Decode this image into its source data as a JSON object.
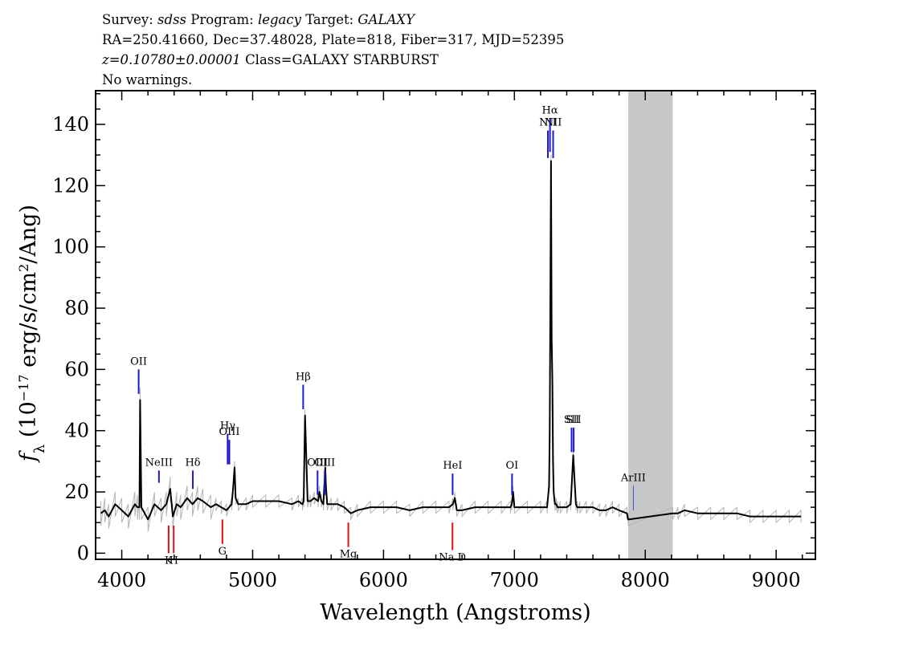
{
  "header": {
    "line1": {
      "survey_label": "Survey:",
      "survey": "sdss",
      "program_label": "Program:",
      "program": "legacy",
      "target_label": "Target:",
      "target": "GALAXY"
    },
    "line2": "RA=250.41660, Dec=37.48028, Plate=818, Fiber=317, MJD=52395",
    "line3": {
      "redshift": "z=0.10780±0.00001",
      "class": "Class=GALAXY STARBURST"
    },
    "line4": "No warnings."
  },
  "colors": {
    "spectrum": "#000000",
    "noise": "#b4b4b4",
    "mask": "#c8c8c8",
    "emission": "#1a1acc",
    "absorption": "#e01010",
    "faint_label": "#444444"
  },
  "chart_data": {
    "type": "line",
    "xlabel": "Wavelength (Angstroms)",
    "ylabel": "f_λ (10^-17 erg/s/cm^2/Ang)",
    "xlim": [
      3800,
      9300
    ],
    "ylim": [
      -2,
      151
    ],
    "xticks": [
      4000,
      5000,
      6000,
      7000,
      8000,
      9000
    ],
    "yticks": [
      0,
      20,
      40,
      60,
      80,
      100,
      120,
      140
    ],
    "grid": false,
    "masked_region": [
      7870,
      8210
    ],
    "series": [
      {
        "values_note": "",
        "x": [
          3840,
          3870,
          3900,
          3950,
          4000,
          4050,
          4100,
          4120,
          4135,
          4140,
          4150,
          4200,
          4250,
          4300,
          4340,
          4370,
          4390,
          4420,
          4450,
          4500,
          4540,
          4580,
          4620,
          4680,
          4720,
          4760,
          4800,
          4840,
          4850,
          4862,
          4870,
          4890,
          4950,
          5000,
          5100,
          5200,
          5300,
          5350,
          5380,
          5390,
          5400,
          5420,
          5440,
          5470,
          5500,
          5510,
          5525,
          5540,
          5555,
          5560,
          5570,
          5600,
          5650,
          5700,
          5750,
          5800,
          5900,
          6000,
          6100,
          6200,
          6300,
          6400,
          6500,
          6530,
          6545,
          6560,
          6600,
          6700,
          6800,
          6900,
          6970,
          6980,
          6990,
          7000,
          7100,
          7200,
          7250,
          7265,
          7270,
          7280,
          7285,
          7290,
          7295,
          7300,
          7310,
          7320,
          7330,
          7350,
          7400,
          7430,
          7440,
          7450,
          7460,
          7470,
          7480,
          7500,
          7550,
          7600,
          7650,
          7700,
          7750,
          7800,
          7860,
          7870,
          8210,
          8250,
          8300,
          8400,
          8500,
          8600,
          8700,
          8800,
          8900,
          9000,
          9100,
          9190
        ],
        "y": [
          13,
          14,
          12,
          16,
          14,
          12,
          16,
          15,
          15,
          50,
          15,
          11,
          16,
          14,
          16,
          21,
          12,
          16,
          15,
          18,
          16,
          18,
          17,
          15,
          16,
          15,
          14,
          16,
          21,
          28,
          18,
          16,
          16,
          17,
          17,
          17,
          16,
          17,
          16,
          17,
          45,
          17,
          17,
          18,
          17,
          20,
          17,
          16,
          28,
          22,
          16,
          16,
          16,
          15,
          13,
          14,
          15,
          15,
          15,
          14,
          15,
          15,
          15,
          16,
          18,
          14,
          14,
          15,
          15,
          15,
          15,
          16,
          20,
          15,
          15,
          15,
          15,
          22,
          40,
          128,
          70,
          56,
          30,
          20,
          16,
          16,
          15,
          15,
          15,
          16,
          24,
          32,
          24,
          16,
          15,
          15,
          15,
          15,
          14,
          14,
          15,
          14,
          13,
          11,
          13,
          13,
          14,
          13,
          13,
          13,
          13,
          12,
          12,
          12,
          12,
          12
        ]
      }
    ],
    "emission_lines": [
      {
        "label": "OII",
        "x": 4129,
        "top": 60,
        "bottom": 52
      },
      {
        "label": "NeIII",
        "x": 4284,
        "top": 27,
        "bottom": 23
      },
      {
        "label": "Hδ",
        "x": 4543,
        "top": 27,
        "bottom": 21
      },
      {
        "label": "Hγ",
        "x": 4809,
        "top": 39,
        "bottom": 29
      },
      {
        "label": "OIII",
        "x": 4822,
        "top": 37,
        "bottom": 29
      },
      {
        "label": "Hβ",
        "x": 5386,
        "top": 55,
        "bottom": 47
      },
      {
        "label": "OIII",
        "x": 5496,
        "top": 27,
        "bottom": 19
      },
      {
        "label": "OIII",
        "x": 5551,
        "top": 27,
        "bottom": 19
      },
      {
        "label": "HeI",
        "x": 6528,
        "top": 26,
        "bottom": 19
      },
      {
        "label": "OI",
        "x": 6982,
        "top": 26,
        "bottom": 19
      },
      {
        "label": "NII",
        "x": 7256,
        "top": 138,
        "bottom": 129
      },
      {
        "label": "Hα",
        "x": 7272,
        "top": 142,
        "bottom": 131
      },
      {
        "label": "NII",
        "x": 7296,
        "top": 138,
        "bottom": 129
      },
      {
        "label": "SII",
        "x": 7437,
        "top": 41,
        "bottom": 33
      },
      {
        "label": "SII",
        "x": 7453,
        "top": 41,
        "bottom": 33
      },
      {
        "label": "ArIII",
        "x": 7909,
        "top": 22,
        "bottom": 14
      }
    ],
    "absorption_lines": [
      {
        "label": "K",
        "x": 4358,
        "top": 9,
        "bottom": 0
      },
      {
        "label": "H",
        "x": 4397,
        "top": 9,
        "bottom": 0
      },
      {
        "label": "G",
        "x": 4769,
        "top": 11,
        "bottom": 3
      },
      {
        "label": "Mg",
        "x": 5731,
        "top": 10,
        "bottom": 2
      },
      {
        "label": "Na D",
        "x": 6527,
        "top": 10,
        "bottom": 1
      }
    ]
  }
}
